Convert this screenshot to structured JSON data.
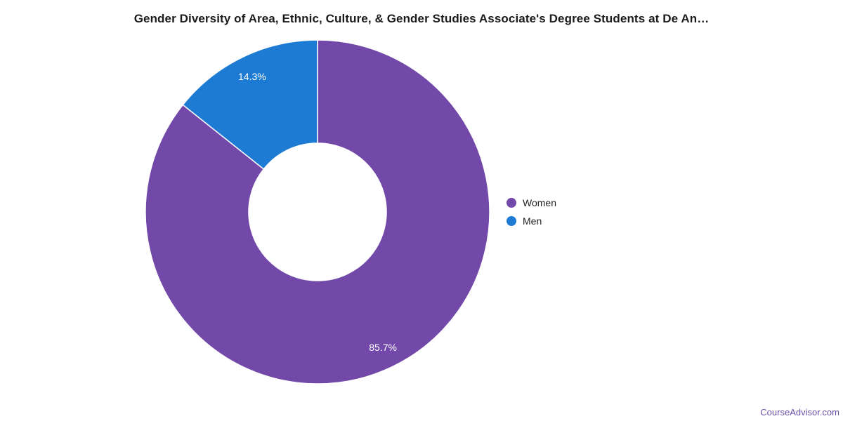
{
  "header": {
    "title": "Gender Diversity of Area, Ethnic, Culture, & Gender Studies Associate's Degree Students at De An…"
  },
  "chart_data": {
    "type": "pie",
    "subtype": "donut",
    "title": "Gender Diversity of Area, Ethnic, Culture, & Gender Studies Associate's Degree Students at De An…",
    "categories": [
      "Women",
      "Men"
    ],
    "values": [
      85.7,
      14.3
    ],
    "slice_labels": [
      "85.7%",
      "14.3%"
    ],
    "colors": [
      "#7248a8",
      "#1e7bd3"
    ],
    "legend_position": "right",
    "start_angle_deg": 0,
    "direction": "clockwise",
    "inner_radius_ratio": 0.4,
    "slice_border_color": "#ffffff"
  },
  "footer": {
    "attribution": "CourseAdvisor.com",
    "attribution_color": "#6b52aa"
  }
}
